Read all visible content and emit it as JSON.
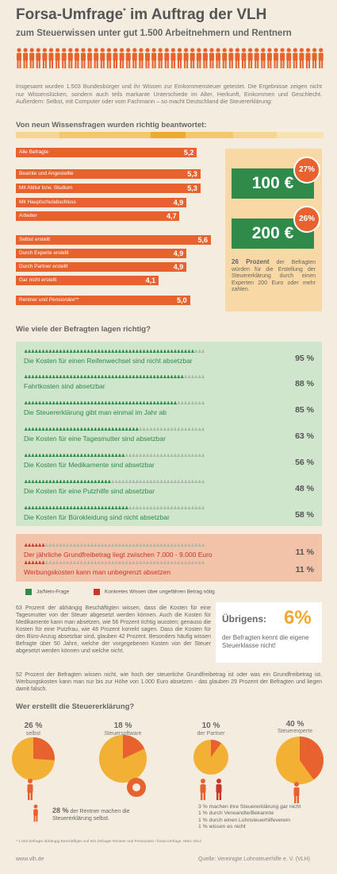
{
  "header": {
    "title": "Forsa-Umfrage",
    "title_sup": "*",
    "title_rest": " im Auftrag der VLH",
    "subtitle": "zum Steuerwissen unter gut 1.500 Arbeitnehmern und Rentnern"
  },
  "intro": "Insgesamt wurden 1.503 Bundesbürger und ihr Wissen zur Einkommensteuer getestet. Die Ergebnisse zeigen nicht nur Wissenslücken, sondern auch teils markante Unterschiede im Alter, Herkunft, Einkommen und Geschlecht. Außerdem: Selbst, mit Computer oder vom Fachmann – so macht Deutschland die Steuererklärung:",
  "section1_title": "Von neun Wissensfragen wurden richtig beantwortet:",
  "side": {
    "badge1": "100 €",
    "pct1": "27%",
    "badge2": "200 €",
    "pct2": "26%",
    "text_bold": "26 Prozent",
    "text": " der Befragten würden für die Erstellung der Steuererklärung durch einen Experten 200 Euro oder mehr zahlen."
  },
  "section2_title": "Wie viele der Befragten lagen richtig?",
  "legend": {
    "green_label": "Ja/Nein-Frage",
    "red_label": "Konkretes Wissen über ungefähren Betrag nötig",
    "green_color": "#2e8b4a",
    "red_color": "#c8372a"
  },
  "para1": "63 Prozent der abhängig Beschäftigten wissen, dass die Kosten für eine Tagesmutter von der Steuer abgesetzt werden können. Auch die Kosten für Medikamente kann man absetzen, wie 56 Prozent richtig wussten; genauso die Kosten für eine Putzfrau, wie 48 Prozent korrekt sagen. Dass die Kosten für den Büro-Anzug absetzbar sind, glauben 42 Prozent. Besonders häufig wissen Befragte über 50 Jahre, welche der vorgegebenen Kosten von der Steuer abgesetzt werden können und welche nicht.",
  "uebrigens": {
    "title": "Übrigens:",
    "pct": "6%",
    "text": "der Befragten kennt die eigene Steuerklasse nicht!"
  },
  "para2": "52 Prozent der Befragten wissen nicht, wie hoch der steuerliche Grundfreibetrag ist oder was ein Grundfreibetrag ist. Werbungskosten kann man nur bis zur Höhe von 1.000 Euro absetzen - das glauben 29 Prozent der Befragten und liegen damit falsch.",
  "section3_title": "Wer erstellt die Steuererklärung?",
  "pies_text": {
    "p1": "26 %",
    "p1_sub": "selbst",
    "p2": "18 %",
    "p2_sub": "Steuersoftware",
    "p3": "10 %",
    "p3_sub": "der Partner",
    "p4": "40 %",
    "p4_sub": "Steuerexperte",
    "rentner_bold": "28 %",
    "rentner_text": " der Rentner machen die Steuererklärung selbst.",
    "note1": "3 % machen ihre Steuererklärung gar nicht",
    "note2": "1 % durch Verwandte/Bekannte",
    "note3": "1 % durch einen Lohnsteuerhilfeverein",
    "note4": "1 % wissen es nicht"
  },
  "footnote": "* 1.002 befragte abhängig Beschäftigte und 501 befragte Rentner und Pensionäre / forsa-Umfrage, März 2014",
  "footer": {
    "left": "www.vlh.de",
    "right": "Quelle: Vereinigte Lohnsteuerhilfe e. V. (VLH)"
  },
  "chart_data": [
    {
      "type": "bar",
      "title": "Von neun Wissensfragen wurden richtig beantwortet:",
      "categories": [
        "Alle Befragte",
        "Beamte und Angestellte",
        "Mit Abitur bzw. Studium",
        "Mit Hauptschulabschluss",
        "Arbeiter",
        "Selbst erstellt",
        "Durch Experte erstellt",
        "Durch Partner erstellt",
        "Gar nicht erstellt",
        "Rentner und Pensionäre**"
      ],
      "values": [
        5.2,
        5.3,
        5.3,
        4.9,
        4.7,
        5.6,
        4.9,
        4.9,
        4.1,
        5.0
      ],
      "labels": [
        "5,2",
        "5,3",
        "5,3",
        "4,9",
        "4,7",
        "5,6",
        "4,9",
        "4,9",
        "4,1",
        "5,0"
      ],
      "xlim": [
        0,
        5.6
      ],
      "colors": {
        "bar": "#e8622f"
      }
    },
    {
      "type": "bar",
      "title": "Wie viele der Befragten lagen richtig?",
      "categories": [
        "Die Kosten für einen Reifenwechsel sind nicht absetzbar",
        "Fahrtkosten sind absetzbar",
        "Die Steuererklärung gibt man einmal im Jahr ab",
        "Die Kosten für eine Tagesmutter sind absetzbar",
        "Die Kosten für Medikamente sind absetzbar",
        "Die Kosten für eine Putzhilfe sind absetzbar",
        "Die Kosten für Bürokleidung sind nicht absetzbar",
        "Der jährliche Grundfreibetrag liegt zwischen 7.000 - 9.000 Euro",
        "Werbungskosten kann man unbegrenzt absetzen"
      ],
      "values": [
        95,
        88,
        85,
        63,
        56,
        48,
        58,
        11,
        11
      ],
      "labels": [
        "95 %",
        "88 %",
        "85 %",
        "63 %",
        "56 %",
        "48 %",
        "58 %",
        "11 %",
        "11 %"
      ],
      "question_type": [
        "ja-nein",
        "ja-nein",
        "ja-nein",
        "ja-nein",
        "ja-nein",
        "ja-nein",
        "ja-nein",
        "betrag",
        "betrag"
      ],
      "colors": {
        "ja-nein": "#2e8b4a",
        "betrag": "#c8372a"
      }
    },
    {
      "type": "pie",
      "title": "Wer erstellt die Steuererklärung?",
      "categories": [
        "selbst",
        "Steuersoftware",
        "der Partner",
        "Steuerexperte"
      ],
      "values": [
        26,
        18,
        10,
        40
      ],
      "colors": {
        "highlight": "#e8622f",
        "rest": "#f2b134"
      }
    }
  ]
}
